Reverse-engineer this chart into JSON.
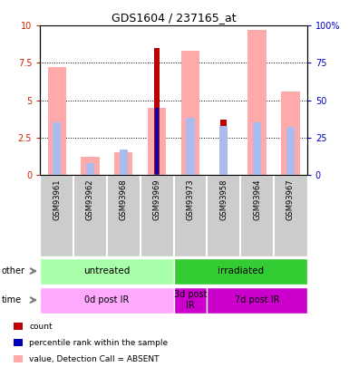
{
  "title": "GDS1604 / 237165_at",
  "samples": [
    "GSM93961",
    "GSM93962",
    "GSM93968",
    "GSM93969",
    "GSM93973",
    "GSM93958",
    "GSM93964",
    "GSM93967"
  ],
  "count_values": [
    0,
    0,
    0,
    8.5,
    0,
    3.7,
    0,
    0
  ],
  "count_color": "#bb0000",
  "percentile_rank_values": [
    0,
    0,
    0,
    4.5,
    0,
    2.6,
    0,
    0
  ],
  "percentile_rank_color": "#0000bb",
  "value_absent_values": [
    7.2,
    1.2,
    1.5,
    4.5,
    8.3,
    0,
    9.7,
    5.6
  ],
  "value_absent_color": "#ffaaaa",
  "rank_absent_values": [
    35,
    8,
    17,
    0,
    38,
    33,
    35,
    32
  ],
  "rank_absent_color": "#aabbee",
  "ylim_left": [
    0,
    10
  ],
  "ylim_right": [
    0,
    100
  ],
  "yticks_left": [
    0,
    2.5,
    5.0,
    7.5,
    10
  ],
  "yticks_right": [
    0,
    25,
    50,
    75,
    100
  ],
  "ytick_labels_left": [
    "0",
    "2.5",
    "5",
    "7.5",
    "10"
  ],
  "ytick_labels_right": [
    "0",
    "25",
    "50",
    "75",
    "100%"
  ],
  "left_tick_color": "#cc2200",
  "right_tick_color": "#0000cc",
  "grid_color": "#888888",
  "sample_bg_color": "#cccccc",
  "plot_bg": "#ffffff",
  "other_row": [
    {
      "label": "untreated",
      "start": 0,
      "end": 4,
      "color": "#aaffaa"
    },
    {
      "label": "irradiated",
      "start": 4,
      "end": 8,
      "color": "#33cc33"
    }
  ],
  "time_row": [
    {
      "label": "0d post IR",
      "start": 0,
      "end": 4,
      "color": "#ffaaff"
    },
    {
      "label": "3d post\nIR",
      "start": 4,
      "end": 5,
      "color": "#cc00cc"
    },
    {
      "label": "7d post IR",
      "start": 5,
      "end": 8,
      "color": "#cc00cc"
    }
  ],
  "legend_items": [
    {
      "label": "count",
      "color": "#bb0000"
    },
    {
      "label": "percentile rank within the sample",
      "color": "#0000bb"
    },
    {
      "label": "value, Detection Call = ABSENT",
      "color": "#ffaaaa"
    },
    {
      "label": "rank, Detection Call = ABSENT",
      "color": "#aabbee"
    }
  ],
  "other_label": "other",
  "time_label": "time"
}
